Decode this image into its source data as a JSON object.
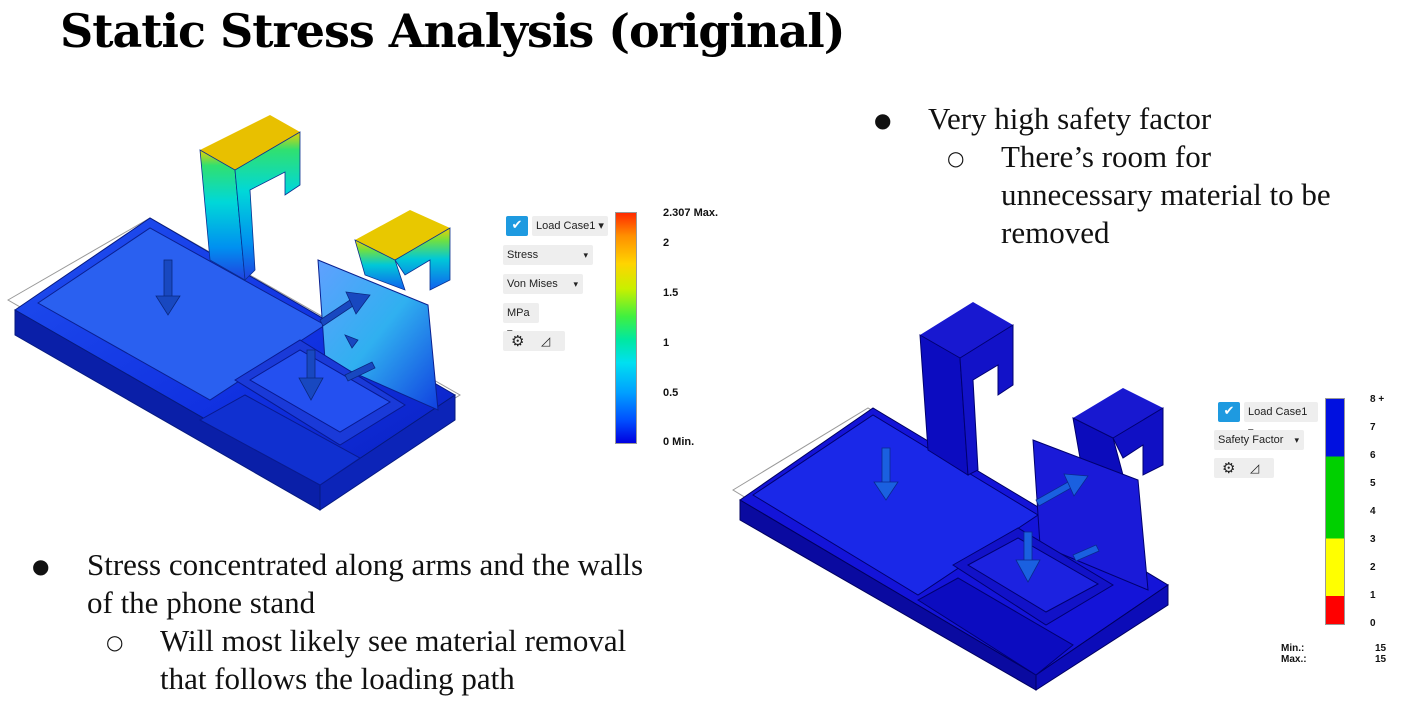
{
  "slide": {
    "title": "Static Stress Analysis (original)",
    "left_bullet": {
      "text": "Stress concentrated along arms and the walls of the phone stand",
      "line1": "Stress concentrated along arms and the walls",
      "line2": "of the phone stand",
      "sub": "Will most likely see material removal that follows the loading path",
      "sub_line1": "Will most likely see material removal",
      "sub_line2": "that follows the loading path"
    },
    "right_bullet": {
      "text": "Very high safety factor",
      "sub_line1": "There’s room for",
      "sub_line2": "unnecessary material to be",
      "sub_line3": "removed"
    },
    "bullet_glyph": "●",
    "sub_glyph": "○"
  },
  "stress_panel": {
    "load_case": "Load Case1 ▾",
    "result_type": "Stress",
    "result_type_arrow": "▾",
    "component": "Von Mises",
    "component_arrow": "▾",
    "units": "MPa ▾",
    "legend_ticks": [
      "2.307 Max.",
      "2",
      "1.5",
      "1",
      "0.5",
      "0 Min."
    ],
    "colors": [
      "#ff2a00",
      "#ffd400",
      "#9cff00",
      "#00e070",
      "#00e0f0",
      "#0060ff",
      "#0000e0"
    ]
  },
  "safety_panel": {
    "load_case": "Load Case1 ▾",
    "result_type": "Safety Factor",
    "result_type_arrow": "▾",
    "legend_ticks": [
      "8 +",
      "7",
      "6",
      "5",
      "4",
      "3",
      "2",
      "1",
      "0"
    ],
    "min_label": "Min.:",
    "max_label": "Max.:",
    "min_value": "15",
    "max_value": "15",
    "colors": {
      "blue": "#0010e0",
      "green": "#00d000",
      "yellow": "#ffff00",
      "red": "#ff0000"
    }
  },
  "icons": {
    "load_case": "double-chevron-check-icon",
    "settings": "gear-icon",
    "probe": "triangle-probe-icon"
  }
}
